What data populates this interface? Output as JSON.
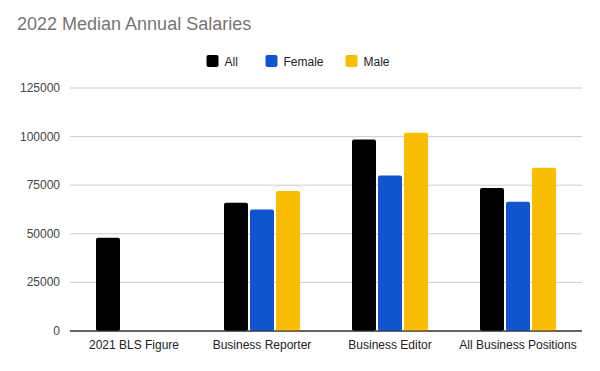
{
  "chart_data": {
    "type": "bar",
    "title": "2022 Median Annual Salaries",
    "categories": [
      "2021 BLS Figure",
      "Business Reporter",
      "Business Editor",
      "All Business Positions"
    ],
    "series": [
      {
        "name": "All",
        "color": "#000000",
        "values": [
          48000,
          66000,
          98500,
          73500
        ]
      },
      {
        "name": "Female",
        "color": "#1155cc",
        "values": [
          null,
          62500,
          80000,
          66500
        ]
      },
      {
        "name": "Male",
        "color": "#fbbc04",
        "values": [
          null,
          72000,
          102000,
          84000
        ]
      }
    ],
    "ylim": [
      0,
      125000
    ],
    "yticks": [
      0,
      25000,
      50000,
      75000,
      100000,
      125000
    ],
    "grid": true,
    "legend": "top"
  }
}
